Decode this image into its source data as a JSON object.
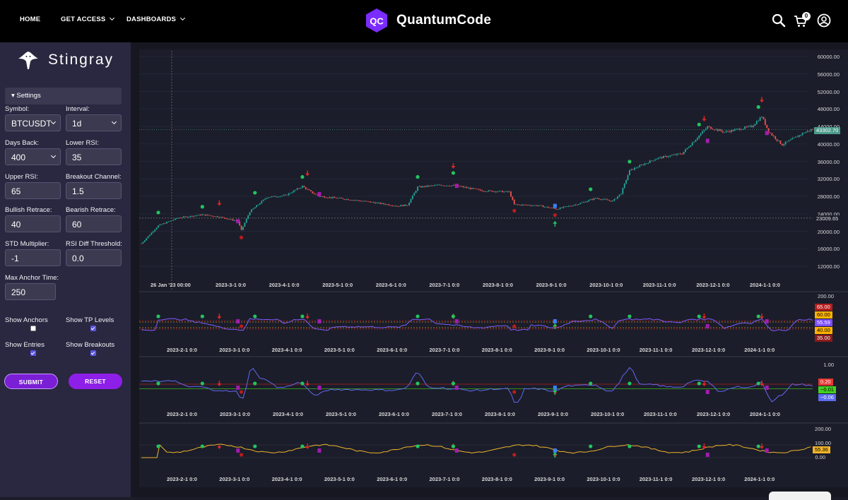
{
  "nav": {
    "home": "HOME",
    "get_access": "GET ACCESS",
    "dashboards": "DASHBOARDS",
    "brand_logo_text": "QC",
    "brand_name": "QuantumCode",
    "cart_count": "0",
    "icons": [
      "search-icon",
      "cart-icon",
      "user-icon"
    ]
  },
  "sidebar": {
    "title": "Stingray",
    "settings_label": "▾ Settings",
    "symbol_label": "Symbol:",
    "symbol_value": "BTCUSDT",
    "interval_label": "Interval:",
    "interval_value": "1d",
    "days_back_label": "Days Back:",
    "days_back_value": "400",
    "lower_rsi_label": "Lower RSI:",
    "lower_rsi_value": "35",
    "upper_rsi_label": "Upper RSI:",
    "upper_rsi_value": "65",
    "breakout_channel_label": "Breakout Channel:",
    "breakout_channel_value": "1.5",
    "bullish_retrace_label": "Bullish Retrace:",
    "bullish_retrace_value": "40",
    "bearish_retrace_label": "Bearish Retrace:",
    "bearish_retrace_value": "60",
    "std_multiplier_label": "STD Multiplier:",
    "std_multiplier_value": "-1",
    "rsi_diff_label": "RSI Diff Threshold:",
    "rsi_diff_value": "0.0",
    "max_anchor_label": "Max Anchor Time:",
    "max_anchor_value": "250",
    "show_anchors_label": "Show Anchors",
    "show_anchors": false,
    "show_tp_label": "Show TP Levels",
    "show_tp": true,
    "show_entries_label": "Show Entries",
    "show_entries": true,
    "show_breakouts_label": "Show Breakouts",
    "show_breakouts": true,
    "submit_label": "SUBMIT",
    "reset_label": "RESET"
  },
  "colors": {
    "accent": "#7b2cff",
    "bull": "#26a69a",
    "bear": "#ef5350",
    "signal_green": "#22c55e",
    "signal_red": "#dc2626",
    "signal_purple": "#a21caf",
    "signal_blue": "#3b82f6",
    "rsi_line": "#7c5cff",
    "osc_line": "#6468f0",
    "third_line": "#f0b429"
  },
  "price_pane": {
    "y_ticks": [
      "60000.00",
      "56000.00",
      "52000.00",
      "48000.00",
      "44000.00",
      "40000.00",
      "36000.00",
      "32000.00",
      "28000.00",
      "24000.00",
      "20000.00",
      "16000.00",
      "12000.00"
    ],
    "last_price": "43302.70",
    "crosshair_price": "23009.65",
    "crosshair_date": "26 Jan '23   00:00",
    "x_ticks": [
      "2023-3-1 0:0",
      "2023-4-1 0:0",
      "2023-5-1 0:0",
      "2023-6-1 0:0",
      "2023-7-1 0:0",
      "2023-8-1 0:0",
      "2023-9-1 0:0",
      "2023-10-1 0:0",
      "2023-11-1 0:0",
      "2023-12-1 0:0",
      "2024-1-1 0:0"
    ]
  },
  "rsi_pane": {
    "top_tick": "200.00",
    "tags": [
      "65.00",
      "60.00",
      "55.59",
      "40.00",
      "35.00"
    ],
    "x_ticks": [
      "2023-2-1 0:0",
      "2023-3-1 0:0",
      "2023-4-1 0:0",
      "2023-5-1 0:0",
      "2023-6-1 0:0",
      "2023-7-1 0:0",
      "2023-8-1 0:0",
      "2023-9-1 0:0",
      "2023-10-1 0:0",
      "2023-11-1 0:0",
      "2023-12-1 0:0",
      "2024-1-1 0:0"
    ]
  },
  "osc_pane": {
    "top_tick": "1.00",
    "tags": [
      "0.20",
      "−0.01",
      "−0.06"
    ],
    "x_ticks": [
      "2023-2-1 0:0",
      "2023-3-1 0:0",
      "2023-4-1 0:0",
      "2023-5-1 0:0",
      "2023-6-1 0:0",
      "2023-7-1 0:0",
      "2023-8-1 0:0",
      "2023-9-1 0:0",
      "2023-10-1 0:0",
      "2023-11-1 0:0",
      "2023-12-1 0:0",
      "2024-1-1 0:0"
    ]
  },
  "third_pane": {
    "top_tick": "200.00",
    "tick_100": "100.00",
    "tick_0": "0.00",
    "tag": "55.36",
    "x_ticks": [
      "2023-2-1 0:0",
      "2023-3-1 0:0",
      "2023-4-1 0:0",
      "2023-5-1 0:0",
      "2023-6-1 0:0",
      "2023-7-1 0:0",
      "2023-8-1 0:0",
      "2023-9-1 0:0",
      "2023-10-1 0:0",
      "2023-11-1 0:0",
      "2023-12-1 0:0",
      "2024-1-1 0:0"
    ]
  },
  "chart_data": {
    "type": "candlestick",
    "x_range": [
      "2023-01-10",
      "2024-02-10"
    ],
    "ylim": [
      12000,
      60000
    ],
    "close_path": [
      [
        "2023-01-10",
        17200
      ],
      [
        "2023-01-20",
        21300
      ],
      [
        "2023-02-01",
        23100
      ],
      [
        "2023-02-15",
        23800
      ],
      [
        "2023-02-25",
        23300
      ],
      [
        "2023-03-08",
        22300
      ],
      [
        "2023-03-10",
        20200
      ],
      [
        "2023-03-15",
        24500
      ],
      [
        "2023-03-25",
        27800
      ],
      [
        "2023-04-05",
        28200
      ],
      [
        "2023-04-15",
        30300
      ],
      [
        "2023-04-20",
        29000
      ],
      [
        "2023-04-25",
        28000
      ],
      [
        "2023-05-10",
        27400
      ],
      [
        "2023-05-25",
        26700
      ],
      [
        "2023-06-10",
        25800
      ],
      [
        "2023-06-16",
        26000
      ],
      [
        "2023-06-22",
        30100
      ],
      [
        "2023-07-05",
        30600
      ],
      [
        "2023-07-15",
        30400
      ],
      [
        "2023-07-30",
        29300
      ],
      [
        "2023-08-15",
        29000
      ],
      [
        "2023-08-18",
        26100
      ],
      [
        "2023-09-01",
        25900
      ],
      [
        "2023-09-12",
        25100
      ],
      [
        "2023-09-25",
        26300
      ],
      [
        "2023-10-05",
        27600
      ],
      [
        "2023-10-15",
        26900
      ],
      [
        "2023-10-20",
        28700
      ],
      [
        "2023-10-25",
        33900
      ],
      [
        "2023-11-10",
        36700
      ],
      [
        "2023-11-25",
        37800
      ],
      [
        "2023-12-05",
        41900
      ],
      [
        "2023-12-10",
        43900
      ],
      [
        "2023-12-20",
        42700
      ],
      [
        "2024-01-05",
        44000
      ],
      [
        "2024-01-11",
        46300
      ],
      [
        "2024-01-15",
        42800
      ],
      [
        "2024-01-23",
        39800
      ],
      [
        "2024-02-05",
        42600
      ],
      [
        "2024-02-10",
        43302.7
      ]
    ],
    "reference_lines": {
      "last_price": 43302.7,
      "crosshair_price": 23009.65
    }
  }
}
